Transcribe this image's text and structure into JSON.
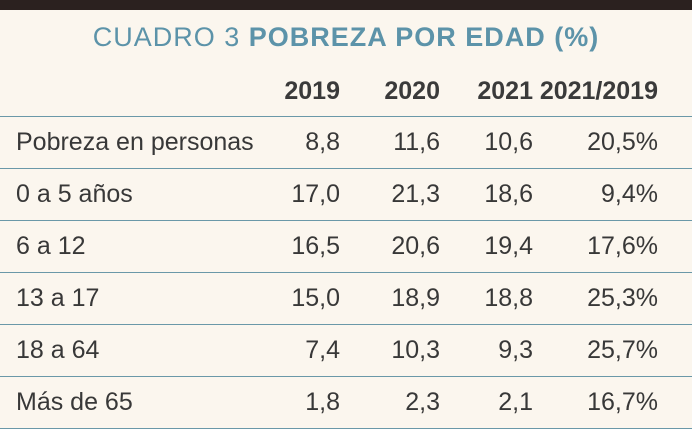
{
  "title": {
    "prefix": "CUADRO 3",
    "bold": "POBREZA POR EDAD (%)"
  },
  "columns": [
    "2019",
    "2020",
    "2021",
    "2021/2019"
  ],
  "rows": [
    {
      "label": "Pobreza en personas",
      "values": [
        "8,8",
        "11,6",
        "10,6",
        "20,5%"
      ]
    },
    {
      "label": "0 a 5 años",
      "values": [
        "17,0",
        "21,3",
        "18,6",
        "9,4%"
      ]
    },
    {
      "label": "6 a 12",
      "values": [
        "16,5",
        "20,6",
        "19,4",
        "17,6%"
      ]
    },
    {
      "label": "13 a 17",
      "values": [
        "15,0",
        "18,9",
        "18,8",
        "25,3%"
      ]
    },
    {
      "label": "18 a 64",
      "values": [
        "7,4",
        "10,3",
        "9,3",
        "25,7%"
      ]
    },
    {
      "label": "Más de 65",
      "values": [
        "1,8",
        "2,3",
        "2,1",
        "16,7%"
      ]
    }
  ],
  "colors": {
    "accent": "#5c93a9",
    "rule": "#6a98a8",
    "top_bar": "#2b211f",
    "background": "#fbf6ee"
  }
}
